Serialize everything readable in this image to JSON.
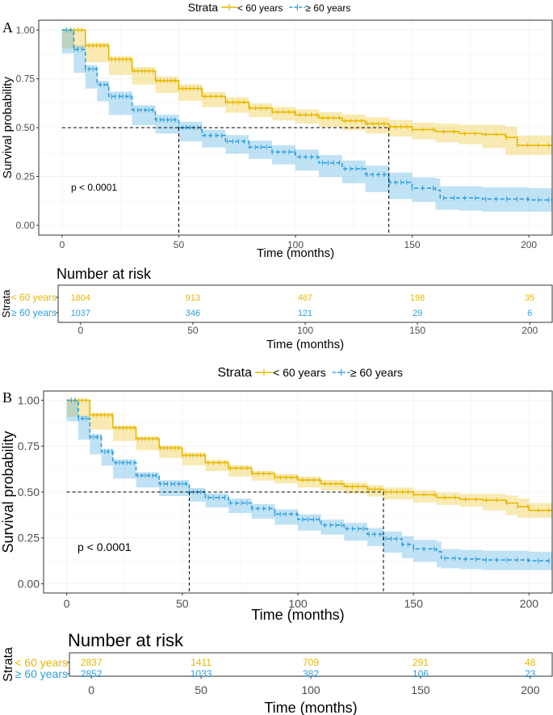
{
  "chart_data": [
    {
      "panel_label": "A",
      "type": "line",
      "title": "",
      "legend": {
        "title": "Strata",
        "position": "top",
        "labels": [
          "< 60 years",
          "≥ 60 years"
        ]
      },
      "xlabel": "Time (months)",
      "ylabel": "Survival probability",
      "xlim": [
        -10,
        210
      ],
      "ylim": [
        -0.05,
        1.05
      ],
      "xticks": [
        0,
        50,
        100,
        150,
        200
      ],
      "yticks": [
        0.0,
        0.25,
        0.5,
        0.75,
        1.0
      ],
      "xtick_labels": [
        "0",
        "50",
        "100",
        "150",
        "200"
      ],
      "ytick_labels": [
        "0.00",
        "0.25",
        "0.50",
        "0.75",
        "1.00"
      ],
      "grid": true,
      "pvalue": "p < 0.0001",
      "median_line_y": 0.5,
      "medians": [
        140,
        50
      ],
      "series": [
        {
          "name": "< 60 years",
          "color": "#E7B800",
          "dash": "solid",
          "x": [
            0,
            10,
            20,
            30,
            40,
            50,
            60,
            70,
            80,
            90,
            100,
            110,
            120,
            130,
            140,
            150,
            160,
            170,
            180,
            190,
            195,
            200,
            210
          ],
          "y": [
            1.0,
            0.92,
            0.85,
            0.79,
            0.74,
            0.7,
            0.66,
            0.63,
            0.6,
            0.58,
            0.565,
            0.55,
            0.535,
            0.52,
            0.505,
            0.49,
            0.48,
            0.47,
            0.465,
            0.45,
            0.41,
            0.41,
            0.41
          ],
          "lower": [
            1.0,
            0.905,
            0.835,
            0.77,
            0.72,
            0.678,
            0.637,
            0.605,
            0.576,
            0.554,
            0.537,
            0.52,
            0.503,
            0.487,
            0.47,
            0.455,
            0.44,
            0.425,
            0.415,
            0.395,
            0.36,
            0.36,
            0.36
          ],
          "upper": [
            1.0,
            0.935,
            0.865,
            0.81,
            0.762,
            0.722,
            0.683,
            0.655,
            0.624,
            0.606,
            0.593,
            0.58,
            0.567,
            0.553,
            0.54,
            0.525,
            0.52,
            0.515,
            0.515,
            0.505,
            0.46,
            0.46,
            0.46
          ],
          "risk_counts": [
            "1804",
            "913",
            "467",
            "198",
            "35"
          ]
        },
        {
          "name": "≥ 60 years",
          "color": "#2E9FDF",
          "dash": "dashed",
          "x": [
            0,
            5,
            10,
            15,
            20,
            30,
            40,
            50,
            60,
            70,
            80,
            90,
            100,
            110,
            120,
            130,
            140,
            150,
            160,
            162,
            170,
            180,
            200,
            210
          ],
          "y": [
            1.0,
            0.9,
            0.8,
            0.72,
            0.66,
            0.59,
            0.54,
            0.5,
            0.46,
            0.43,
            0.4,
            0.375,
            0.35,
            0.32,
            0.29,
            0.26,
            0.22,
            0.19,
            0.18,
            0.14,
            0.14,
            0.135,
            0.13,
            0.13
          ],
          "lower": [
            1.0,
            0.88,
            0.78,
            0.7,
            0.635,
            0.565,
            0.513,
            0.47,
            0.43,
            0.398,
            0.366,
            0.34,
            0.312,
            0.28,
            0.248,
            0.215,
            0.17,
            0.135,
            0.12,
            0.08,
            0.08,
            0.075,
            0.07,
            0.07
          ],
          "upper": [
            1.0,
            0.92,
            0.82,
            0.74,
            0.685,
            0.615,
            0.567,
            0.53,
            0.49,
            0.462,
            0.434,
            0.41,
            0.388,
            0.36,
            0.332,
            0.305,
            0.27,
            0.245,
            0.24,
            0.2,
            0.2,
            0.195,
            0.19,
            0.19
          ],
          "risk_counts": [
            "1037",
            "346",
            "121",
            "29",
            "6"
          ]
        }
      ],
      "risk_table": {
        "title": "Number at risk",
        "ylabel": "Strata",
        "xlabel": "Time (months)",
        "times": [
          0,
          50,
          100,
          150,
          200
        ]
      }
    },
    {
      "panel_label": "B",
      "type": "line",
      "title": "",
      "legend": {
        "title": "Strata",
        "position": "top",
        "labels": [
          "< 60 years",
          "≥ 60 years"
        ]
      },
      "xlabel": "Time (months)",
      "ylabel": "Survival probability",
      "xlim": [
        -10,
        210
      ],
      "ylim": [
        -0.05,
        1.05
      ],
      "xticks": [
        0,
        50,
        100,
        150,
        200
      ],
      "yticks": [
        0.0,
        0.25,
        0.5,
        0.75,
        1.0
      ],
      "xtick_labels": [
        "0",
        "50",
        "100",
        "150",
        "200"
      ],
      "ytick_labels": [
        "0.00",
        "0.25",
        "0.50",
        "0.75",
        "1.00"
      ],
      "grid": true,
      "pvalue": "p < 0.0001",
      "median_line_y": 0.5,
      "medians": [
        137,
        53
      ],
      "series": [
        {
          "name": "< 60 years",
          "color": "#E7B800",
          "dash": "solid",
          "x": [
            0,
            10,
            20,
            30,
            40,
            50,
            60,
            70,
            80,
            90,
            100,
            110,
            120,
            130,
            137,
            150,
            160,
            170,
            180,
            190,
            195,
            200,
            210
          ],
          "y": [
            1.0,
            0.92,
            0.85,
            0.79,
            0.74,
            0.7,
            0.66,
            0.63,
            0.6,
            0.58,
            0.565,
            0.545,
            0.53,
            0.515,
            0.5,
            0.485,
            0.47,
            0.46,
            0.455,
            0.44,
            0.42,
            0.4,
            0.4
          ],
          "lower": [
            1.0,
            0.91,
            0.84,
            0.778,
            0.727,
            0.686,
            0.645,
            0.614,
            0.584,
            0.562,
            0.546,
            0.524,
            0.508,
            0.492,
            0.476,
            0.46,
            0.443,
            0.43,
            0.42,
            0.4,
            0.375,
            0.36,
            0.36
          ],
          "upper": [
            1.0,
            0.93,
            0.86,
            0.802,
            0.753,
            0.714,
            0.675,
            0.646,
            0.616,
            0.598,
            0.584,
            0.566,
            0.552,
            0.538,
            0.524,
            0.51,
            0.497,
            0.49,
            0.49,
            0.48,
            0.465,
            0.44,
            0.44
          ],
          "risk_counts": [
            "2837",
            "1411",
            "709",
            "291",
            "48"
          ]
        },
        {
          "name": "≥ 60 years",
          "color": "#2E9FDF",
          "dash": "dashed",
          "x": [
            0,
            5,
            10,
            15,
            20,
            30,
            40,
            53,
            60,
            70,
            80,
            90,
            100,
            110,
            120,
            130,
            137,
            145,
            150,
            160,
            162,
            170,
            180,
            200,
            210
          ],
          "y": [
            1.0,
            0.9,
            0.8,
            0.72,
            0.66,
            0.59,
            0.545,
            0.5,
            0.47,
            0.44,
            0.41,
            0.38,
            0.35,
            0.32,
            0.3,
            0.27,
            0.245,
            0.215,
            0.19,
            0.175,
            0.14,
            0.135,
            0.13,
            0.125,
            0.125
          ],
          "lower": [
            1.0,
            0.885,
            0.785,
            0.705,
            0.643,
            0.573,
            0.525,
            0.478,
            0.447,
            0.416,
            0.385,
            0.354,
            0.322,
            0.29,
            0.268,
            0.235,
            0.205,
            0.17,
            0.14,
            0.12,
            0.09,
            0.085,
            0.08,
            0.075,
            0.075
          ],
          "upper": [
            1.0,
            0.915,
            0.815,
            0.735,
            0.677,
            0.607,
            0.565,
            0.522,
            0.493,
            0.464,
            0.435,
            0.406,
            0.378,
            0.35,
            0.332,
            0.305,
            0.285,
            0.26,
            0.24,
            0.23,
            0.19,
            0.185,
            0.18,
            0.175,
            0.175
          ],
          "risk_counts": [
            "2852",
            "1033",
            "382",
            "106",
            "23"
          ]
        }
      ],
      "risk_table": {
        "title": "Number at risk",
        "ylabel": "Strata",
        "xlabel": "Time (months)",
        "times": [
          0,
          50,
          100,
          150,
          200
        ]
      }
    }
  ]
}
